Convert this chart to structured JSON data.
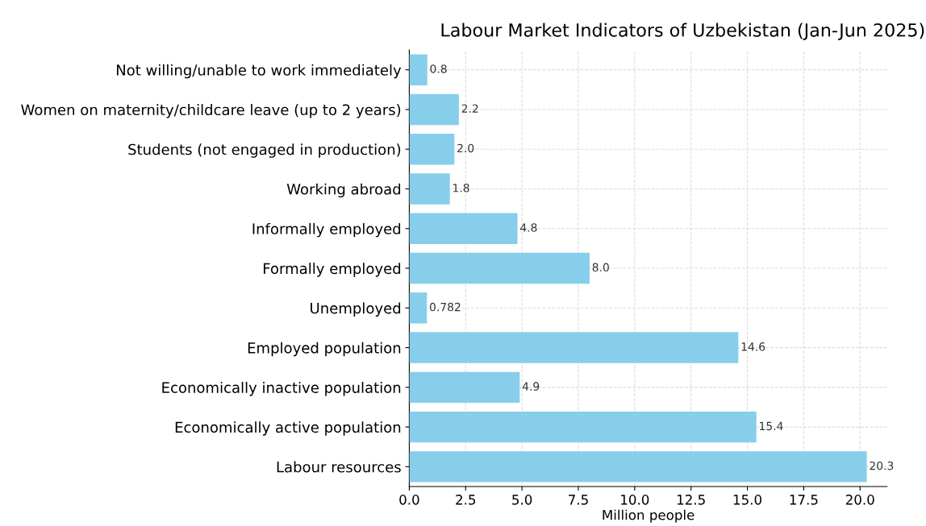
{
  "chart_data": {
    "type": "bar",
    "orientation": "horizontal",
    "title": "Labour Market Indicators of Uzbekistan (Jan-Jun 2025)",
    "xlabel": "Million people",
    "categories": [
      "Not willing/unable to work immediately",
      "Women on maternity/childcare leave (up to 2 years)",
      "Students (not engaged in production)",
      "Working abroad",
      "Informally employed",
      "Formally employed",
      "Unemployed",
      "Employed population",
      "Economically inactive population",
      "Economically active population",
      "Labour resources"
    ],
    "values": [
      0.8,
      2.2,
      2.0,
      1.8,
      4.8,
      8.0,
      0.782,
      14.6,
      4.9,
      15.4,
      20.3
    ],
    "value_labels": [
      "0.8",
      "2.2",
      "2.0",
      "1.8",
      "4.8",
      "8.0",
      "0.782",
      "14.6",
      "4.9",
      "15.4",
      "20.3"
    ],
    "color": "#87ceeb",
    "xlim": [
      0,
      21.2
    ],
    "xticks": [
      {
        "value": 0,
        "label": "0.0"
      },
      {
        "value": 2.5,
        "label": "2.5"
      },
      {
        "value": 5,
        "label": "5.0"
      },
      {
        "value": 7.5,
        "label": "7.5"
      },
      {
        "value": 10,
        "label": "10.0"
      },
      {
        "value": 12.5,
        "label": "12.5"
      },
      {
        "value": 15,
        "label": "15.0"
      },
      {
        "value": 17.5,
        "label": "17.5"
      },
      {
        "value": 20,
        "label": "20.0"
      }
    ],
    "grid": true
  }
}
